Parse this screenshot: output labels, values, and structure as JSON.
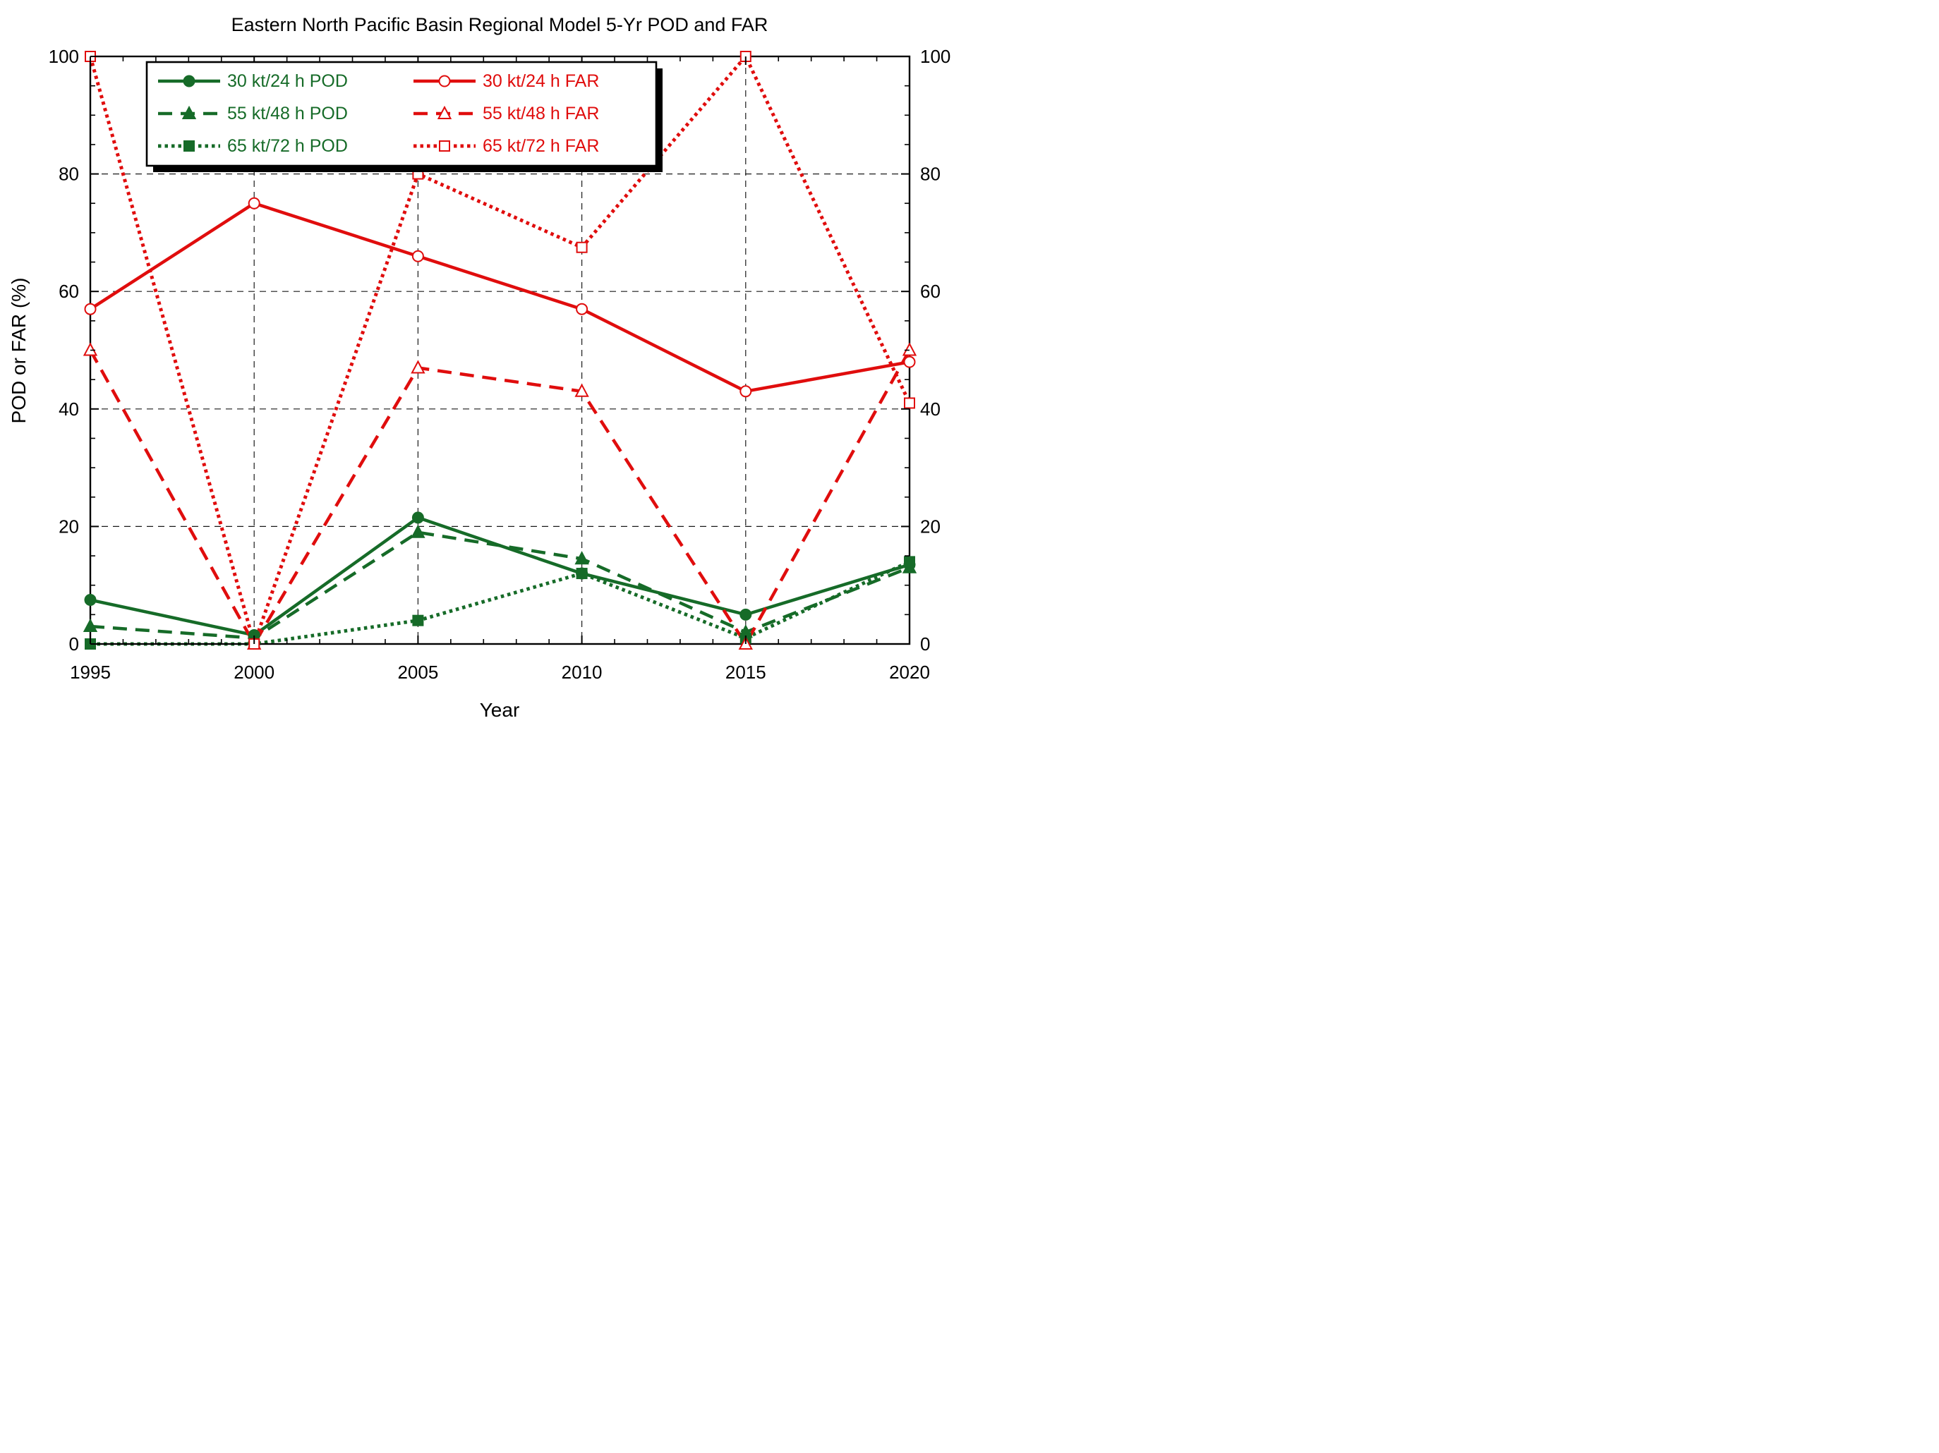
{
  "chart_data": {
    "type": "line",
    "title": "Eastern North Pacific Basin Regional Model 5-Yr POD and FAR",
    "xlabel": "Year",
    "ylabel": "POD or FAR (%)",
    "xlim": [
      1995,
      2020
    ],
    "ylim": [
      0,
      100
    ],
    "x_ticks": [
      1995,
      2000,
      2005,
      2010,
      2015,
      2020
    ],
    "y_ticks": [
      0,
      20,
      40,
      60,
      80,
      100
    ],
    "x_minor_step": 1,
    "y_minor_step": 5,
    "grid_x": [
      2000,
      2005,
      2010,
      2015
    ],
    "grid_y": [
      20,
      40,
      60,
      80
    ],
    "grid_on": true,
    "legend_position": "top-left",
    "dual_y_axis_labels": true,
    "colors": {
      "pod": "#166b28",
      "far": "#e00d0d",
      "axis": "#000000",
      "grid": "#1a1a1a",
      "background": "#ffffff"
    },
    "x": [
      1995,
      2000,
      2005,
      2010,
      2015,
      2020
    ],
    "series": [
      {
        "name": "30 kt/24 h POD",
        "group": "pod",
        "color": "#166b28",
        "line": "solid",
        "marker": "circle",
        "fill": "filled",
        "values": [
          7.5,
          1.5,
          21.5,
          12,
          5,
          13.5
        ]
      },
      {
        "name": "55 kt/48 h POD",
        "group": "pod",
        "color": "#166b28",
        "line": "dashed",
        "marker": "triangle",
        "fill": "filled",
        "values": [
          3,
          1,
          19,
          14.5,
          2,
          13
        ]
      },
      {
        "name": "65 kt/72 h POD",
        "group": "pod",
        "color": "#166b28",
        "line": "dotted",
        "marker": "square",
        "fill": "filled",
        "values": [
          0,
          0,
          4,
          12,
          1,
          14
        ]
      },
      {
        "name": "30 kt/24 h FAR",
        "group": "far",
        "color": "#e00d0d",
        "line": "solid",
        "marker": "circle",
        "fill": "open",
        "values": [
          57,
          75,
          66,
          57,
          43,
          48
        ]
      },
      {
        "name": "55 kt/48 h FAR",
        "group": "far",
        "color": "#e00d0d",
        "line": "dashed",
        "marker": "triangle",
        "fill": "open",
        "values": [
          50,
          0,
          47,
          43,
          0,
          50
        ]
      },
      {
        "name": "65 kt/72 h FAR",
        "group": "far",
        "color": "#e00d0d",
        "line": "dotted",
        "marker": "square",
        "fill": "open",
        "values": [
          100,
          0,
          80,
          67.5,
          100,
          41
        ]
      }
    ]
  }
}
